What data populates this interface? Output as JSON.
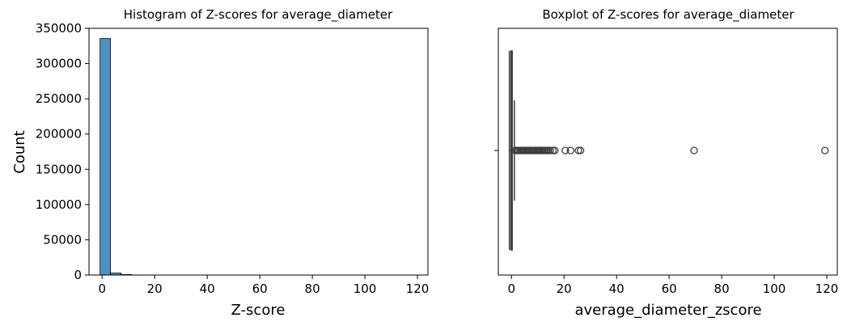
{
  "chart_data": [
    {
      "type": "bar",
      "subtype": "histogram",
      "title": "Histogram of Z-scores for average_diameter",
      "xlabel": "Z-score",
      "ylabel": "Count",
      "xlim": [
        -5,
        124
      ],
      "ylim": [
        0,
        350000
      ],
      "xticks": [
        0,
        20,
        40,
        60,
        80,
        100,
        120
      ],
      "yticks": [
        0,
        50000,
        100000,
        150000,
        200000,
        250000,
        300000,
        350000
      ],
      "bins": [
        {
          "x0": -0.8,
          "x1": 3.2,
          "count": 335500
        },
        {
          "x0": 3.2,
          "x1": 7.2,
          "count": 2800
        },
        {
          "x0": 7.2,
          "x1": 11.2,
          "count": 700
        },
        {
          "x0": 11.2,
          "x1": 15.2,
          "count": 150
        },
        {
          "x0": 15.2,
          "x1": 19.2,
          "count": 40
        },
        {
          "x0": 19.2,
          "x1": 23.2,
          "count": 20
        },
        {
          "x0": 23.2,
          "x1": 27.2,
          "count": 15
        }
      ],
      "bar_color": "#4d91c3",
      "grid": false
    },
    {
      "type": "boxplot",
      "title": "Boxplot of Z-scores for average_diameter",
      "xlabel": "average_diameter_zscore",
      "ylabel": "",
      "xlim": [
        -5,
        124
      ],
      "xticks": [
        0,
        20,
        40,
        60,
        80,
        100,
        120
      ],
      "box": {
        "q1": -0.2,
        "median": 0.0,
        "q3": 0.3,
        "whisker_low": -0.8,
        "whisker_high": 1.1
      },
      "outliers": [
        1.5,
        2,
        2.5,
        3,
        3.5,
        4,
        4.5,
        5,
        5.5,
        6,
        6.5,
        7,
        7.5,
        8,
        8.5,
        9,
        9.5,
        10,
        10.5,
        11,
        11.5,
        12,
        12.5,
        13,
        13.5,
        14,
        14.8,
        15.8,
        16.5,
        20.5,
        22.5,
        25.5,
        26.3,
        69.5,
        119.3
      ],
      "box_color": "#4d91c3",
      "grid": false
    }
  ]
}
